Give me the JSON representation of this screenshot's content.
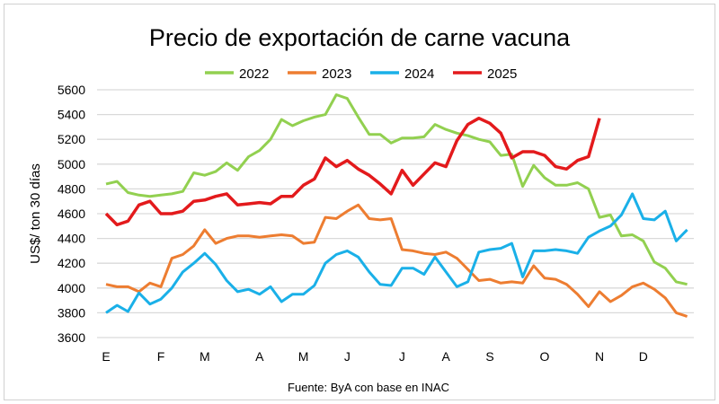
{
  "chart_data": {
    "type": "line",
    "title": "Precio de exportación de carne vacuna",
    "ylabel": "US$/ ton 30 días",
    "xlabel": "",
    "source": "Fuente: ByA con base en INAC",
    "ylim": [
      3600,
      5600
    ],
    "yticks": [
      3600,
      3800,
      4000,
      4200,
      4400,
      4600,
      4800,
      5000,
      5200,
      5400,
      5600
    ],
    "grid": true,
    "legend": "top",
    "x_unit": "week of year",
    "month_ticks": [
      {
        "label": "E",
        "week": 0
      },
      {
        "label": "F",
        "week": 5
      },
      {
        "label": "M",
        "week": 9
      },
      {
        "label": "A",
        "week": 14
      },
      {
        "label": "M",
        "week": 18
      },
      {
        "label": "J",
        "week": 22
      },
      {
        "label": "J",
        "week": 27
      },
      {
        "label": "A",
        "week": 31
      },
      {
        "label": "S",
        "week": 35
      },
      {
        "label": "O",
        "week": 40
      },
      {
        "label": "N",
        "week": 45
      },
      {
        "label": "D",
        "week": 49
      }
    ],
    "series": [
      {
        "name": "2022",
        "color": "#92d050",
        "values": [
          4840,
          4860,
          4770,
          4750,
          4740,
          4750,
          4760,
          4780,
          4930,
          4910,
          4940,
          5010,
          4950,
          5060,
          5110,
          5200,
          5360,
          5310,
          5350,
          5380,
          5400,
          5560,
          5530,
          5380,
          5240,
          5240,
          5170,
          5210,
          5210,
          5220,
          5320,
          5280,
          5250,
          5230,
          5200,
          5180,
          5070,
          5080,
          4820,
          4990,
          4890,
          4830,
          4830,
          4850,
          4800,
          4570,
          4590,
          4420,
          4430,
          4380,
          4210,
          4160,
          4050,
          4030
        ]
      },
      {
        "name": "2023",
        "color": "#ed7d31",
        "values": [
          4030,
          4010,
          4010,
          3970,
          4040,
          4010,
          4240,
          4270,
          4340,
          4470,
          4360,
          4400,
          4420,
          4420,
          4410,
          4420,
          4430,
          4420,
          4360,
          4370,
          4570,
          4560,
          4620,
          4670,
          4560,
          4550,
          4560,
          4310,
          4300,
          4280,
          4270,
          4290,
          4240,
          4150,
          4060,
          4070,
          4040,
          4050,
          4040,
          4180,
          4080,
          4070,
          4030,
          3950,
          3850,
          3970,
          3890,
          3940,
          4010,
          4040,
          3990,
          3920,
          3800,
          3770
        ]
      },
      {
        "name": "2024",
        "color": "#1ab0e8",
        "values": [
          3800,
          3860,
          3810,
          3960,
          3870,
          3910,
          4000,
          4130,
          4200,
          4280,
          4190,
          4060,
          3970,
          3990,
          3950,
          4010,
          3890,
          3950,
          3950,
          4020,
          4200,
          4270,
          4300,
          4250,
          4130,
          4030,
          4020,
          4160,
          4160,
          4110,
          4250,
          4130,
          4010,
          4050,
          4290,
          4310,
          4320,
          4360,
          4090,
          4300,
          4300,
          4310,
          4300,
          4280,
          4410,
          4460,
          4500,
          4590,
          4760,
          4560,
          4550,
          4620,
          4380,
          4470
        ]
      },
      {
        "name": "2025",
        "color": "#e31a1c",
        "values": [
          4600,
          4510,
          4540,
          4670,
          4700,
          4600,
          4600,
          4620,
          4700,
          4710,
          4740,
          4760,
          4670,
          4680,
          4690,
          4680,
          4740,
          4740,
          4830,
          4880,
          5050,
          4980,
          5030,
          4960,
          4910,
          4840,
          4760,
          4950,
          4830,
          4920,
          5010,
          4980,
          5190,
          5320,
          5370,
          5330,
          5250,
          5050,
          5100,
          5100,
          5070,
          4980,
          4960,
          5030,
          5060,
          5370
        ]
      }
    ]
  }
}
